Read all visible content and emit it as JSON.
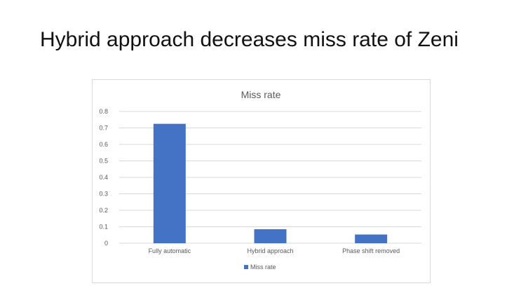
{
  "slide": {
    "title": "Hybrid approach decreases miss rate of Zeni"
  },
  "chart_data": {
    "type": "bar",
    "title": "Miss rate",
    "categories": [
      "Fully automatic",
      "Hybrid approach",
      "Phase shift removed"
    ],
    "series": [
      {
        "name": "Miss rate",
        "values": [
          0.725,
          0.085,
          0.053
        ],
        "color": "#4472c4"
      }
    ],
    "ylim": [
      0,
      0.8
    ],
    "yticks": [
      "0",
      "0.1",
      "0.2",
      "0.3",
      "0.4",
      "0.5",
      "0.6",
      "0.7",
      "0.8"
    ],
    "grid": true,
    "legend": "bottom"
  }
}
